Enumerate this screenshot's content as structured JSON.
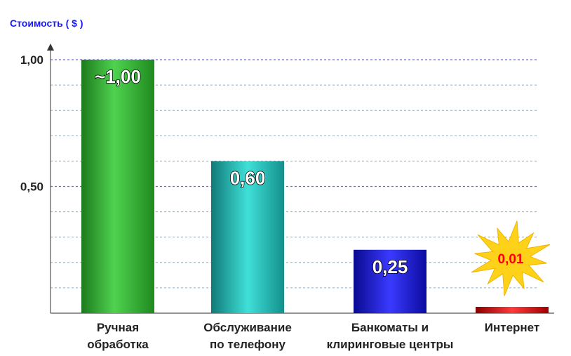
{
  "chart_data": {
    "type": "bar",
    "ylabel": "Стоимость ( $ )",
    "ylim": [
      0,
      1.0
    ],
    "yticks": [
      {
        "value": 1.0,
        "label": "1,00"
      },
      {
        "value": 0.5,
        "label": "0,50"
      }
    ],
    "gridlines": [
      0.1,
      0.2,
      0.3,
      0.4,
      0.5,
      0.6,
      0.7,
      0.8,
      0.9,
      1.0
    ],
    "categories": [
      [
        "Ручная",
        "обработка"
      ],
      [
        "Обслуживание",
        "по телефону"
      ],
      [
        "Банкоматы и",
        "клиринговые центры"
      ],
      [
        "Интернет"
      ]
    ],
    "values": [
      1.0,
      0.6,
      0.25,
      0.01
    ],
    "data_labels": [
      "~1,00",
      "0,60",
      "0,25",
      "0,01"
    ],
    "colors": [
      "#2ea82e",
      "#1fb5ad",
      "#1a1adb",
      "#cc0000"
    ],
    "starburst_color": "#ffd21a",
    "grid": true
  }
}
